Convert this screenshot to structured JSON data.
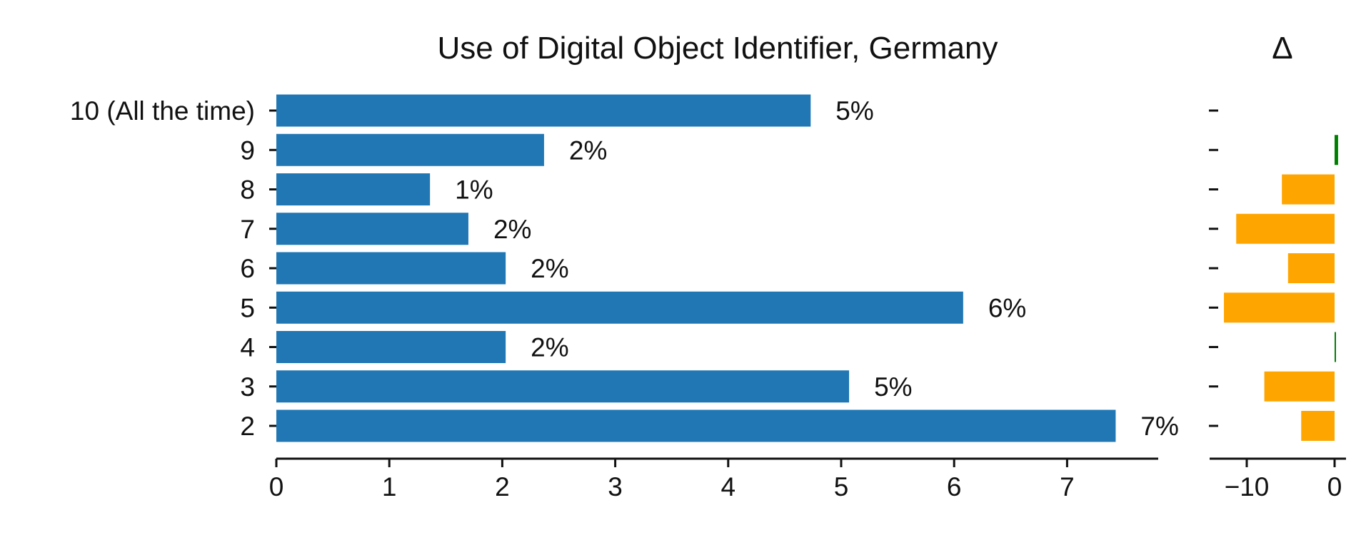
{
  "chart_data": [
    {
      "type": "bar",
      "orientation": "horizontal",
      "title": "Use of Digital Object Identifier, Germany",
      "xlabel": "",
      "ylabel": "",
      "categories": [
        "10 (All the time)",
        "9",
        "8",
        "7",
        "6",
        "5",
        "4",
        "3",
        "2"
      ],
      "values": [
        4.73,
        2.37,
        1.36,
        1.7,
        2.03,
        6.08,
        2.03,
        5.07,
        7.43
      ],
      "data_labels": [
        "5%",
        "2%",
        "1%",
        "2%",
        "2%",
        "6%",
        "2%",
        "5%",
        "7%"
      ],
      "xlim": [
        0,
        7.8
      ],
      "xticks": [
        0,
        1,
        2,
        3,
        4,
        5,
        6,
        7
      ],
      "color": "#2077b4",
      "grid": false
    },
    {
      "type": "bar",
      "orientation": "horizontal",
      "title": "Δ",
      "categories": [
        "10 (All the time)",
        "9",
        "8",
        "7",
        "6",
        "5",
        "4",
        "3",
        "2"
      ],
      "values": [
        0,
        0.4,
        -6.0,
        -11.2,
        -5.3,
        -12.6,
        0.1,
        -8.0,
        -3.8
      ],
      "xlim": [
        -14,
        1
      ],
      "xticks": [
        -10,
        0
      ],
      "xtick_labels": [
        "−10",
        "0"
      ],
      "colors": {
        "positive": "#008000",
        "negative": "#ffa500"
      },
      "grid": false
    }
  ]
}
